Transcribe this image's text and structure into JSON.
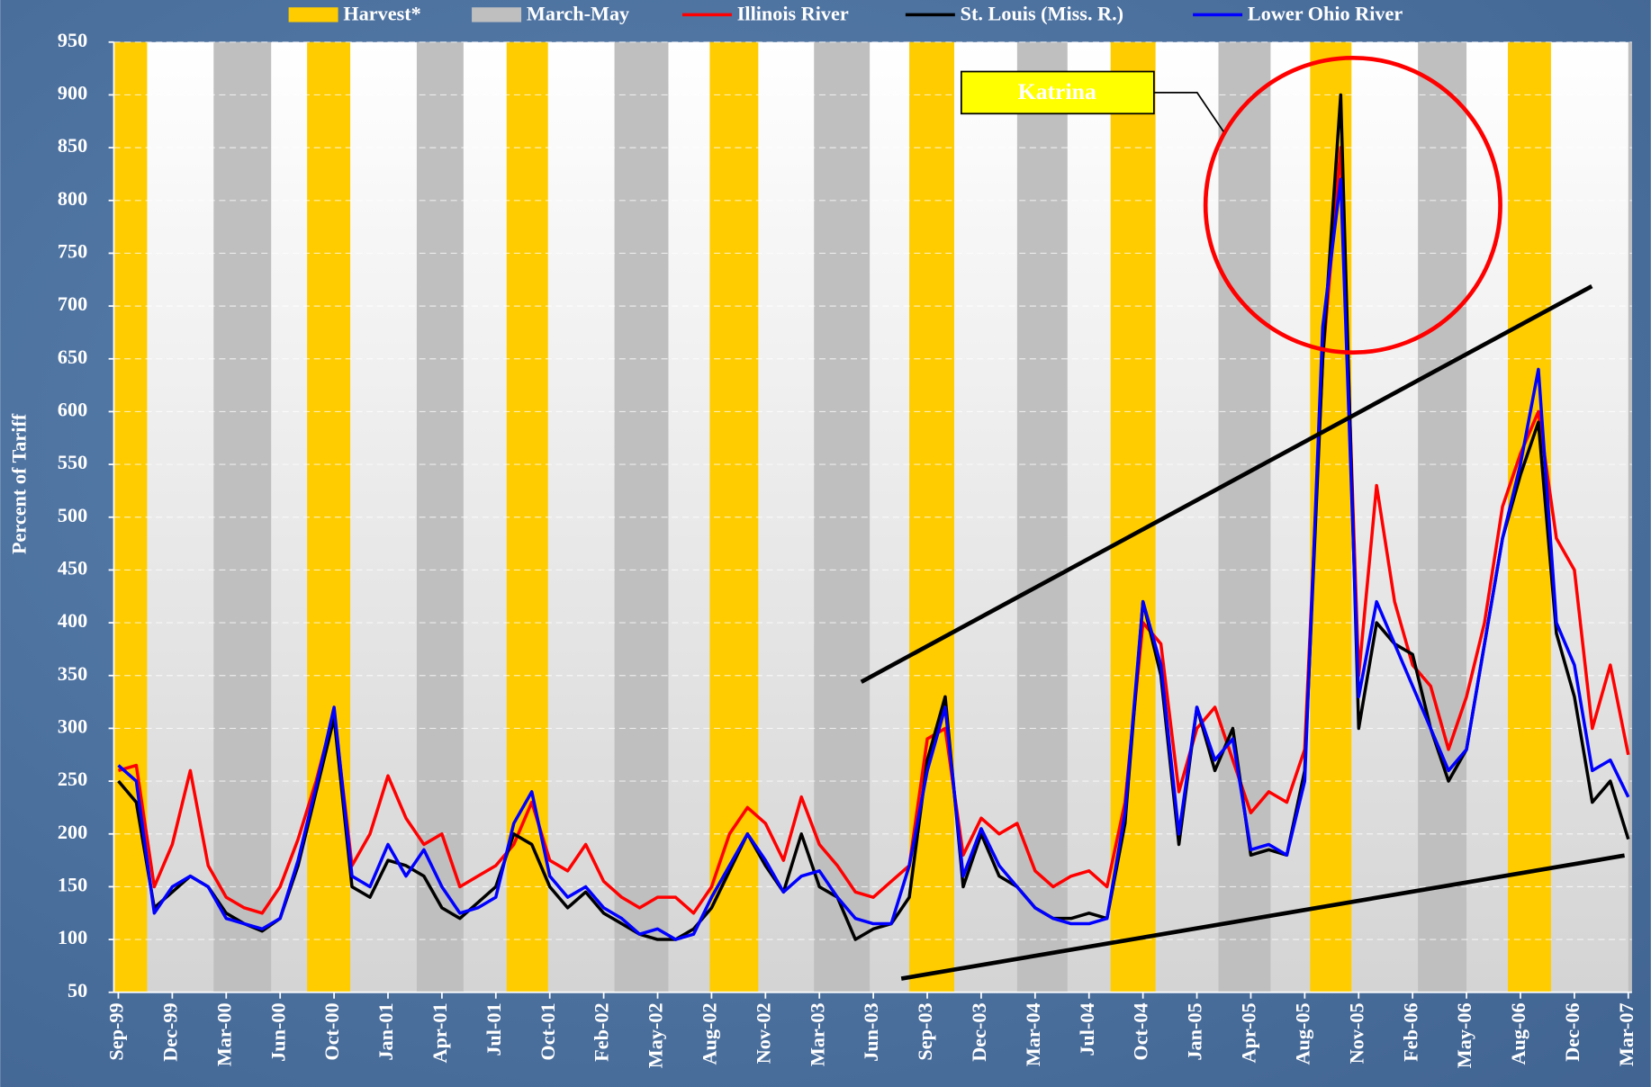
{
  "chart_data": {
    "type": "line",
    "y_label": "Percent of Tariff",
    "annotations": [
      "Katrina"
    ],
    "ylim": [
      50,
      950
    ],
    "yticks": [
      50,
      100,
      150,
      200,
      250,
      300,
      350,
      400,
      450,
      500,
      550,
      600,
      650,
      700,
      750,
      800,
      850,
      900,
      950
    ],
    "xlim": [
      -0.25,
      84.2
    ],
    "grid": true,
    "categories": [
      "Sep-99",
      null,
      null,
      "Dec-99",
      null,
      null,
      "Mar-00",
      null,
      null,
      "Jun-00",
      null,
      null,
      "Oct-00",
      null,
      null,
      "Jan-01",
      null,
      null,
      "Apr-01",
      null,
      null,
      "Jul-01",
      null,
      null,
      "Oct-01",
      null,
      null,
      "Feb-02",
      null,
      null,
      "May-02",
      null,
      null,
      "Aug-02",
      null,
      null,
      "Nov-02",
      null,
      null,
      "Mar-03",
      null,
      null,
      "Jun-03",
      null,
      null,
      "Sep-03",
      null,
      null,
      "Dec-03",
      null,
      null,
      "Mar-04",
      null,
      null,
      "Jul-04",
      null,
      null,
      "Oct-04",
      null,
      null,
      "Jan-05",
      null,
      null,
      "Apr-05",
      null,
      null,
      "Aug-05",
      null,
      null,
      "Nov-05",
      null,
      null,
      "Feb-06",
      null,
      null,
      "May-06",
      null,
      null,
      "Aug-06",
      null,
      null,
      "Dec-06",
      null,
      null,
      "Mar-07"
    ],
    "bands": [
      {
        "name": "Harvest*",
        "color": "#ffcc00",
        "ranges": [
          [
            -0.25,
            1.6
          ],
          [
            10.5,
            12.9
          ],
          [
            21.6,
            23.9
          ],
          [
            32.9,
            35.6
          ],
          [
            44.0,
            46.5
          ],
          [
            55.2,
            57.7
          ],
          [
            66.3,
            68.6
          ],
          [
            77.3,
            79.7
          ]
        ]
      },
      {
        "name": "March-May",
        "color": "#bfbfbf",
        "ranges": [
          [
            5.3,
            8.5
          ],
          [
            16.6,
            19.2
          ],
          [
            27.6,
            30.6
          ],
          [
            38.7,
            41.8
          ],
          [
            50.0,
            52.8
          ],
          [
            61.2,
            64.1
          ],
          [
            72.3,
            75.0
          ],
          [
            84.0,
            84.2
          ]
        ]
      }
    ],
    "series": [
      {
        "name": "Illinois River",
        "color": "#ff0000",
        "values": [
          260,
          265,
          150,
          190,
          260,
          170,
          140,
          130,
          125,
          150,
          195,
          250,
          315,
          170,
          200,
          255,
          215,
          190,
          200,
          150,
          160,
          170,
          190,
          230,
          175,
          165,
          190,
          155,
          140,
          130,
          140,
          140,
          125,
          150,
          200,
          225,
          210,
          175,
          235,
          190,
          170,
          145,
          140,
          155,
          170,
          290,
          300,
          180,
          215,
          200,
          210,
          165,
          150,
          160,
          165,
          150,
          230,
          400,
          380,
          240,
          300,
          320,
          270,
          220,
          240,
          230,
          280,
          650,
          850,
          350,
          530,
          420,
          360,
          340,
          280,
          330,
          400,
          510,
          560,
          600,
          480,
          450,
          300,
          360,
          275
        ]
      },
      {
        "name": "St. Louis (Miss. R.)",
        "color": "#000000",
        "values": [
          250,
          230,
          130,
          145,
          160,
          150,
          125,
          115,
          108,
          120,
          170,
          240,
          310,
          150,
          140,
          175,
          170,
          160,
          130,
          120,
          135,
          150,
          200,
          190,
          150,
          130,
          145,
          125,
          115,
          105,
          100,
          100,
          110,
          130,
          165,
          200,
          170,
          145,
          200,
          150,
          140,
          100,
          110,
          115,
          140,
          270,
          330,
          150,
          200,
          160,
          150,
          130,
          120,
          120,
          125,
          120,
          210,
          420,
          350,
          190,
          320,
          260,
          300,
          180,
          185,
          180,
          260,
          650,
          900,
          300,
          400,
          380,
          370,
          300,
          250,
          280,
          380,
          480,
          540,
          590,
          390,
          330,
          230,
          250,
          195
        ]
      },
      {
        "name": "Lower Ohio River",
        "color": "#0000ff",
        "values": [
          265,
          250,
          125,
          150,
          160,
          150,
          120,
          115,
          110,
          120,
          175,
          245,
          320,
          160,
          150,
          190,
          160,
          185,
          150,
          125,
          130,
          140,
          210,
          240,
          160,
          140,
          150,
          130,
          120,
          105,
          110,
          100,
          105,
          140,
          170,
          200,
          175,
          145,
          160,
          165,
          140,
          120,
          115,
          115,
          170,
          260,
          320,
          160,
          205,
          170,
          150,
          130,
          120,
          115,
          115,
          120,
          220,
          420,
          360,
          200,
          320,
          270,
          290,
          185,
          190,
          180,
          250,
          680,
          820,
          330,
          420,
          380,
          340,
          300,
          260,
          280,
          380,
          480,
          550,
          640,
          400,
          360,
          260,
          270,
          235
        ]
      }
    ]
  }
}
